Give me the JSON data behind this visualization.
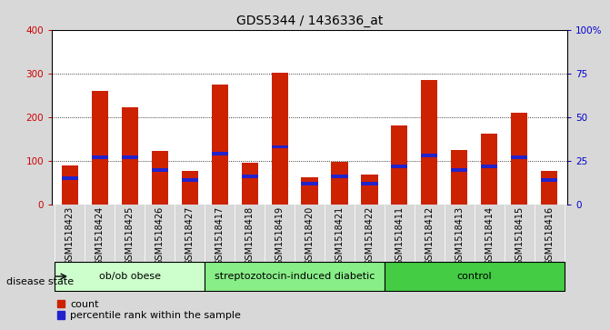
{
  "title": "GDS5344 / 1436336_at",
  "samples": [
    "GSM1518423",
    "GSM1518424",
    "GSM1518425",
    "GSM1518426",
    "GSM1518427",
    "GSM1518417",
    "GSM1518418",
    "GSM1518419",
    "GSM1518420",
    "GSM1518421",
    "GSM1518422",
    "GSM1518411",
    "GSM1518412",
    "GSM1518413",
    "GSM1518414",
    "GSM1518415",
    "GSM1518416"
  ],
  "counts": [
    90,
    260,
    222,
    122,
    78,
    275,
    95,
    302,
    62,
    97,
    68,
    180,
    285,
    125,
    162,
    210,
    78
  ],
  "percentile_values": [
    15,
    27,
    27,
    20,
    14,
    29,
    16,
    33,
    12,
    16,
    12,
    22,
    28,
    20,
    22,
    27,
    14
  ],
  "groups": [
    {
      "label": "ob/ob obese",
      "start": 0,
      "end": 5,
      "color": "#ccffcc"
    },
    {
      "label": "streptozotocin-induced diabetic",
      "start": 5,
      "end": 11,
      "color": "#88ee88"
    },
    {
      "label": "control",
      "start": 11,
      "end": 17,
      "color": "#44cc44"
    }
  ],
  "bar_color": "#cc2200",
  "percentile_color": "#2222cc",
  "left_yaxis_color": "#cc0000",
  "right_yaxis_color": "#0000cc",
  "left_ylim": [
    0,
    400
  ],
  "right_ylim": [
    0,
    100
  ],
  "left_yticks": [
    0,
    100,
    200,
    300,
    400
  ],
  "right_yticks": [
    0,
    25,
    50,
    75,
    100
  ],
  "right_yticklabels": [
    "0",
    "25",
    "50",
    "75",
    "100%"
  ],
  "left_yticklabels": [
    "0",
    "100",
    "200",
    "300",
    "400"
  ],
  "background_color": "#d8d8d8",
  "plot_bg_color": "#ffffff",
  "xtick_bg_color": "#d0d0d0",
  "bar_width": 0.55,
  "title_fontsize": 10,
  "tick_fontsize": 7.5,
  "group_fontsize": 8,
  "legend_fontsize": 8
}
